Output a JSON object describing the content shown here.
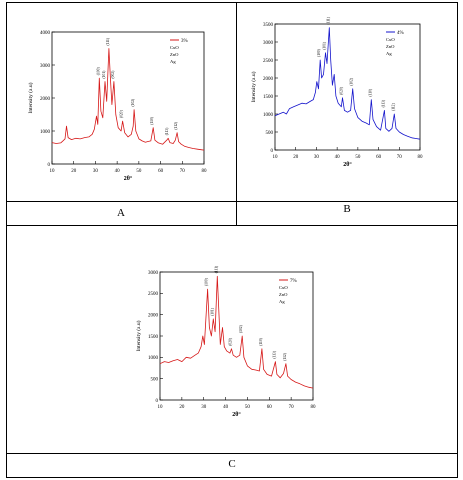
{
  "panels": [
    {
      "caption": "A"
    },
    {
      "caption": "B"
    },
    {
      "caption": "C"
    }
  ],
  "chart_data": [
    {
      "type": "line",
      "color": "#d61818",
      "xlabel": "2θ°",
      "ylabel": "Intensity (a.u)",
      "xlim": [
        10,
        80
      ],
      "ylim": [
        0,
        4000
      ],
      "xticks": [
        10,
        20,
        30,
        40,
        50,
        60,
        70,
        80
      ],
      "yticks": [
        0,
        1000,
        2000,
        3000,
        4000
      ],
      "legend": {
        "series": "3%",
        "entries": [
          "CuO",
          "ZnO",
          "Ag"
        ],
        "position": "top-right"
      },
      "points": [
        [
          10,
          650
        ],
        [
          12,
          620
        ],
        [
          14,
          640
        ],
        [
          15,
          700
        ],
        [
          16,
          760
        ],
        [
          16.7,
          1150
        ],
        [
          17.4,
          800
        ],
        [
          19,
          740
        ],
        [
          21,
          780
        ],
        [
          23,
          760
        ],
        [
          25,
          800
        ],
        [
          27,
          820
        ],
        [
          28.5,
          900
        ],
        [
          29.5,
          1050
        ],
        [
          30.5,
          1450
        ],
        [
          31.1,
          1200
        ],
        [
          31.8,
          2600
        ],
        [
          32.5,
          1600
        ],
        [
          33.4,
          1400
        ],
        [
          34.4,
          2500
        ],
        [
          35.2,
          1900
        ],
        [
          36.2,
          3500
        ],
        [
          36.9,
          2600
        ],
        [
          37.6,
          1800
        ],
        [
          38.5,
          2500
        ],
        [
          39.4,
          1500
        ],
        [
          40.5,
          1100
        ],
        [
          41.8,
          1000
        ],
        [
          42.5,
          1300
        ],
        [
          43.5,
          950
        ],
        [
          45,
          820
        ],
        [
          46.5,
          900
        ],
        [
          47.4,
          1150
        ],
        [
          47.8,
          1650
        ],
        [
          48.6,
          1000
        ],
        [
          50,
          760
        ],
        [
          51.5,
          700
        ],
        [
          53,
          660
        ],
        [
          54,
          680
        ],
        [
          55.5,
          700
        ],
        [
          56.6,
          1100
        ],
        [
          57.4,
          720
        ],
        [
          59,
          640
        ],
        [
          61,
          600
        ],
        [
          62.8,
          720
        ],
        [
          63.5,
          780
        ],
        [
          64.3,
          650
        ],
        [
          65.8,
          620
        ],
        [
          66.8,
          720
        ],
        [
          67.6,
          950
        ],
        [
          68.3,
          680
        ],
        [
          69.5,
          600
        ],
        [
          71,
          540
        ],
        [
          73,
          500
        ],
        [
          75,
          470
        ],
        [
          77,
          450
        ],
        [
          79,
          430
        ],
        [
          80,
          420
        ]
      ],
      "annotations": [
        {
          "text": "(100)",
          "x": 31.8,
          "y": 2600
        },
        {
          "text": "(101)",
          "x": 34.4,
          "y": 2500
        },
        {
          "text": "(111)",
          "x": 36.2,
          "y": 3500
        },
        {
          "text": "(002)",
          "x": 38.5,
          "y": 2500
        },
        {
          "text": "(020)",
          "x": 42.5,
          "y": 1300
        },
        {
          "text": "(102)",
          "x": 47.8,
          "y": 1650
        },
        {
          "text": "(110)",
          "x": 56.6,
          "y": 1100
        },
        {
          "text": "(113)",
          "x": 63.5,
          "y": 780
        },
        {
          "text": "(112)",
          "x": 67.6,
          "y": 950
        }
      ]
    },
    {
      "type": "line",
      "color": "#1414cc",
      "xlabel": "2θ°",
      "ylabel": "Intensity (a.u)",
      "xlim": [
        10,
        80
      ],
      "ylim": [
        0,
        3500
      ],
      "xticks": [
        10,
        20,
        30,
        40,
        50,
        60,
        70,
        80
      ],
      "yticks": [
        0,
        500,
        1000,
        1500,
        2000,
        2500,
        3000,
        3500
      ],
      "legend": {
        "series": "4%",
        "entries": [
          "CuO",
          "ZnO",
          "Ag"
        ],
        "position": "top-right"
      },
      "points": [
        [
          10,
          950
        ],
        [
          12,
          1000
        ],
        [
          14,
          1050
        ],
        [
          15.5,
          1000
        ],
        [
          17,
          1150
        ],
        [
          19,
          1200
        ],
        [
          21,
          1250
        ],
        [
          23,
          1300
        ],
        [
          25,
          1280
        ],
        [
          27,
          1350
        ],
        [
          28.5,
          1400
        ],
        [
          29.5,
          1600
        ],
        [
          30.2,
          1900
        ],
        [
          31,
          1700
        ],
        [
          31.8,
          2500
        ],
        [
          32.5,
          2000
        ],
        [
          33.4,
          2100
        ],
        [
          34.4,
          2700
        ],
        [
          35.1,
          2400
        ],
        [
          36.2,
          3400
        ],
        [
          36.9,
          2500
        ],
        [
          37.7,
          1800
        ],
        [
          38.6,
          2100
        ],
        [
          39.4,
          1500
        ],
        [
          40.5,
          1300
        ],
        [
          42,
          1200
        ],
        [
          42.6,
          1450
        ],
        [
          43.5,
          1100
        ],
        [
          45,
          1050
        ],
        [
          46.5,
          1100
        ],
        [
          47.5,
          1700
        ],
        [
          48.4,
          1150
        ],
        [
          50,
          900
        ],
        [
          52,
          800
        ],
        [
          54,
          750
        ],
        [
          55.5,
          700
        ],
        [
          56.5,
          1400
        ],
        [
          57.3,
          850
        ],
        [
          59,
          650
        ],
        [
          61,
          550
        ],
        [
          62.8,
          1100
        ],
        [
          63.5,
          600
        ],
        [
          65,
          520
        ],
        [
          66.5,
          600
        ],
        [
          67.6,
          1000
        ],
        [
          68.4,
          600
        ],
        [
          70,
          500
        ],
        [
          72,
          430
        ],
        [
          74,
          380
        ],
        [
          76,
          340
        ],
        [
          78,
          320
        ],
        [
          80,
          300
        ]
      ],
      "annotations": [
        {
          "text": "(100)",
          "x": 31.8,
          "y": 2500
        },
        {
          "text": "(101)",
          "x": 34.4,
          "y": 2700
        },
        {
          "text": "(111)",
          "x": 36.2,
          "y": 3400
        },
        {
          "text": "(020)",
          "x": 42.6,
          "y": 1450
        },
        {
          "text": "(102)",
          "x": 47.5,
          "y": 1700
        },
        {
          "text": "(110)",
          "x": 56.5,
          "y": 1400
        },
        {
          "text": "(113)",
          "x": 62.8,
          "y": 1100
        },
        {
          "text": "(112)",
          "x": 67.6,
          "y": 1000
        }
      ]
    },
    {
      "type": "line",
      "color": "#d61818",
      "xlabel": "2θ°",
      "ylabel": "Intensity (a.u)",
      "xlim": [
        10,
        80
      ],
      "ylim": [
        0,
        3000
      ],
      "xticks": [
        10,
        20,
        30,
        40,
        50,
        60,
        70,
        80
      ],
      "yticks": [
        0,
        500,
        1000,
        1500,
        2000,
        2500,
        3000
      ],
      "legend": {
        "series": "7%",
        "entries": [
          "CuO",
          "ZnO",
          "Ag"
        ],
        "position": "top-right"
      },
      "points": [
        [
          10,
          850
        ],
        [
          12,
          900
        ],
        [
          14,
          880
        ],
        [
          16,
          920
        ],
        [
          18,
          950
        ],
        [
          20,
          900
        ],
        [
          22,
          1000
        ],
        [
          24,
          980
        ],
        [
          26,
          1050
        ],
        [
          27.5,
          1100
        ],
        [
          28.8,
          1250
        ],
        [
          29.6,
          1500
        ],
        [
          30.3,
          1300
        ],
        [
          31.8,
          2600
        ],
        [
          32.6,
          1700
        ],
        [
          33.5,
          1500
        ],
        [
          34.4,
          1900
        ],
        [
          35.2,
          1600
        ],
        [
          36.2,
          2900
        ],
        [
          36.9,
          2100
        ],
        [
          37.6,
          1300
        ],
        [
          38.6,
          1700
        ],
        [
          39.4,
          1250
        ],
        [
          40.5,
          1150
        ],
        [
          42,
          1100
        ],
        [
          42.7,
          1200
        ],
        [
          43.5,
          1050
        ],
        [
          45,
          1000
        ],
        [
          46.5,
          1050
        ],
        [
          47.6,
          1500
        ],
        [
          48.4,
          1000
        ],
        [
          50,
          800
        ],
        [
          52,
          720
        ],
        [
          54,
          700
        ],
        [
          55.5,
          680
        ],
        [
          56.6,
          1200
        ],
        [
          57.4,
          720
        ],
        [
          59,
          600
        ],
        [
          61,
          560
        ],
        [
          62.8,
          900
        ],
        [
          63.5,
          600
        ],
        [
          65,
          520
        ],
        [
          66.5,
          620
        ],
        [
          67.6,
          850
        ],
        [
          68.4,
          560
        ],
        [
          70,
          480
        ],
        [
          72,
          420
        ],
        [
          74,
          380
        ],
        [
          76,
          330
        ],
        [
          78,
          300
        ],
        [
          80,
          280
        ]
      ],
      "annotations": [
        {
          "text": "(100)",
          "x": 31.8,
          "y": 2600
        },
        {
          "text": "(101)",
          "x": 34.4,
          "y": 1900
        },
        {
          "text": "(111)",
          "x": 36.2,
          "y": 2900
        },
        {
          "text": "(020)",
          "x": 42.7,
          "y": 1200
        },
        {
          "text": "(102)",
          "x": 47.6,
          "y": 1500
        },
        {
          "text": "(110)",
          "x": 56.6,
          "y": 1200
        },
        {
          "text": "(113)",
          "x": 62.8,
          "y": 900
        },
        {
          "text": "(112)",
          "x": 67.6,
          "y": 850
        }
      ]
    }
  ]
}
